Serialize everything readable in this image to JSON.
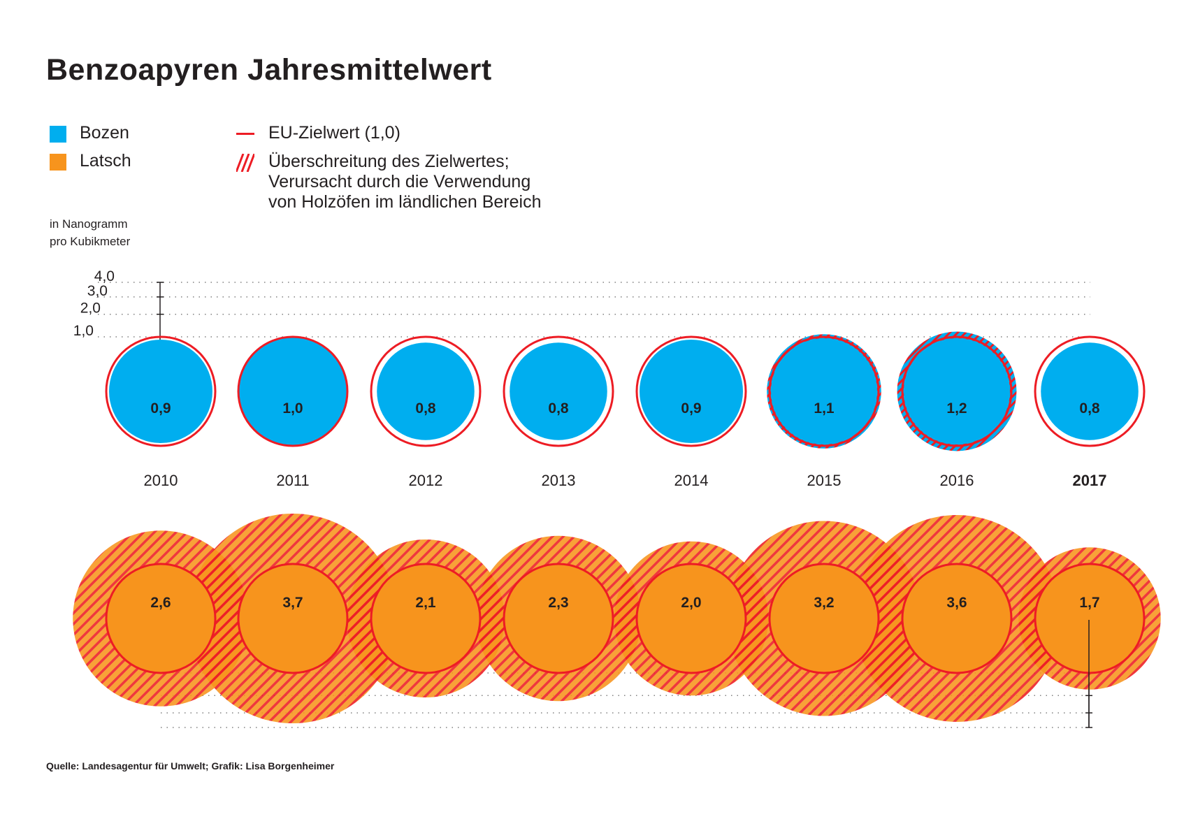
{
  "title": "Benzoapyren Jahresmittelwert",
  "legend": {
    "bozen": {
      "label": "Bozen",
      "color": "#00aeef"
    },
    "latsch": {
      "label": "Latsch",
      "color": "#f7941d"
    },
    "target": {
      "label": "EU-Zielwert (1,0)",
      "color": "#ed1c24"
    },
    "exceed": {
      "label": "Überschreitung des Zielwertes;\nVerursacht durch die Verwendung\nvon Holzöfen im ländlichen Bereich",
      "color": "#ed1c24"
    }
  },
  "unit_label": "in Nanogramm\npro Kubikmeter",
  "source": "Quelle: Landesagentur für Umwelt; Grafik: Lisa Borgenheimer",
  "chart_data": {
    "type": "bubble",
    "title": "Benzoapyren Jahresmittelwert",
    "ylabel": "in Nanogramm pro Kubikmeter",
    "scale_ticks": [
      "4,0",
      "3,0",
      "2,0",
      "1,0"
    ],
    "scale_values": [
      4.0,
      3.0,
      2.0,
      1.0
    ],
    "target_value": 1.0,
    "target_label": "EU-Zielwert (1,0)",
    "categories": [
      "2010",
      "2011",
      "2012",
      "2013",
      "2014",
      "2015",
      "2016",
      "2017"
    ],
    "highlight_category": "2017",
    "series": [
      {
        "name": "Bozen",
        "values": [
          0.9,
          1.0,
          0.8,
          0.8,
          0.9,
          1.1,
          1.2,
          0.8
        ],
        "labels": [
          "0,9",
          "1,0",
          "0,8",
          "0,8",
          "0,9",
          "1,1",
          "1,2",
          "0,8"
        ]
      },
      {
        "name": "Latsch",
        "values": [
          2.6,
          3.7,
          2.1,
          2.3,
          2.0,
          3.2,
          3.6,
          1.7
        ],
        "labels": [
          "2,6",
          "3,7",
          "2,1",
          "2,3",
          "2,0",
          "3,2",
          "3,6",
          "1,7"
        ]
      }
    ],
    "colors": {
      "bozen": "#00aeef",
      "latsch": "#f7941d",
      "target": "#ed1c24",
      "grid": "#808080"
    }
  }
}
